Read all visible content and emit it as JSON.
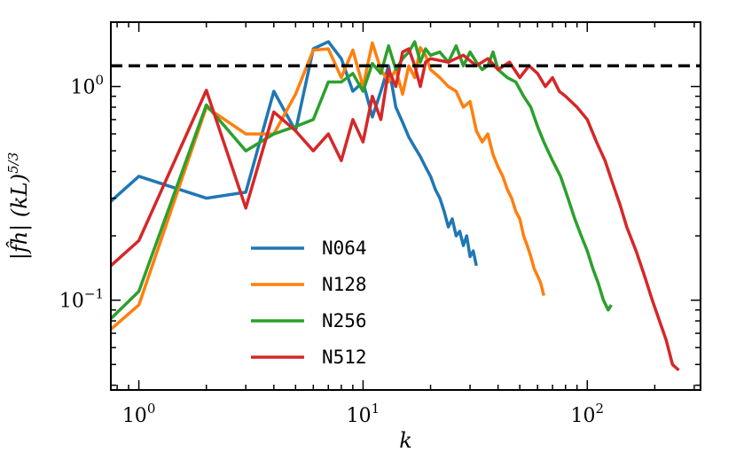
{
  "chart_data": {
    "type": "line",
    "xscale": "log",
    "yscale": "log",
    "xlabel": "k",
    "ylabel": "|f̂h| (kL)5/3",
    "xlim": [
      0.75,
      320
    ],
    "ylim": [
      0.038,
      2.0
    ],
    "x_ticks": [
      {
        "value": 1,
        "base": "10",
        "exp": "0"
      },
      {
        "value": 10,
        "base": "10",
        "exp": "1"
      },
      {
        "value": 100,
        "base": "10",
        "exp": "2"
      }
    ],
    "y_ticks": [
      {
        "value": 0.1,
        "base": "10",
        "exp": "−1"
      },
      {
        "value": 1,
        "base": "10",
        "exp": "0"
      }
    ],
    "reference_line": {
      "y": 1.25,
      "style": "dashed",
      "color": "#000000"
    },
    "legend": {
      "position": "lower-left"
    },
    "series": [
      {
        "name": "N064",
        "color": "#1f77b4",
        "x": [
          0.75,
          1,
          2,
          3,
          4,
          5,
          6,
          7,
          8,
          9,
          10,
          11,
          12,
          13,
          14,
          15,
          16,
          17,
          18,
          19,
          20,
          21,
          22,
          23,
          24,
          25,
          26,
          27,
          28,
          29,
          30,
          31,
          32
        ],
        "y": [
          0.29,
          0.38,
          0.3,
          0.32,
          0.95,
          0.62,
          1.5,
          1.62,
          1.35,
          0.95,
          1.05,
          0.72,
          0.95,
          1.25,
          0.8,
          0.68,
          0.58,
          0.52,
          0.47,
          0.42,
          0.38,
          0.33,
          0.3,
          0.26,
          0.22,
          0.24,
          0.2,
          0.21,
          0.18,
          0.2,
          0.16,
          0.17,
          0.145
        ]
      },
      {
        "name": "N128",
        "color": "#ff7f0e",
        "x": [
          0.75,
          1,
          2,
          3,
          4,
          5,
          6,
          7,
          8,
          9,
          10,
          11,
          12,
          13,
          14,
          15,
          16,
          17,
          18,
          19,
          20,
          22,
          24,
          26,
          28,
          30,
          32,
          34,
          36,
          38,
          40,
          42,
          44,
          46,
          48,
          50,
          52,
          54,
          56,
          58,
          60,
          62,
          64
        ],
        "y": [
          0.073,
          0.095,
          0.8,
          0.6,
          0.6,
          0.92,
          1.48,
          1.5,
          1.1,
          1.48,
          1.0,
          1.6,
          1.2,
          1.05,
          1.2,
          0.92,
          1.25,
          1.1,
          1.52,
          1.4,
          1.2,
          1.1,
          1.0,
          0.95,
          0.8,
          0.85,
          0.62,
          0.55,
          0.6,
          0.48,
          0.42,
          0.38,
          0.33,
          0.3,
          0.26,
          0.24,
          0.2,
          0.18,
          0.16,
          0.14,
          0.13,
          0.12,
          0.105
        ]
      },
      {
        "name": "N256",
        "color": "#2ca02c",
        "x": [
          0.75,
          1,
          2,
          3,
          4,
          5,
          6,
          7,
          8,
          9,
          10,
          11,
          12,
          13,
          14,
          15,
          16,
          17,
          18,
          19,
          20,
          22,
          24,
          26,
          28,
          30,
          32,
          34,
          36,
          38,
          40,
          44,
          48,
          52,
          56,
          60,
          64,
          70,
          76,
          82,
          88,
          94,
          100,
          106,
          112,
          118,
          124,
          128
        ],
        "y": [
          0.082,
          0.11,
          0.82,
          0.5,
          0.6,
          0.65,
          0.7,
          1.05,
          1.05,
          1.15,
          0.95,
          1.28,
          1.15,
          1.55,
          1.2,
          1.35,
          1.45,
          1.62,
          1.3,
          1.5,
          1.4,
          1.45,
          1.3,
          1.55,
          1.25,
          1.45,
          1.3,
          1.2,
          1.25,
          1.45,
          1.2,
          1.1,
          1.05,
          0.9,
          0.8,
          0.65,
          0.55,
          0.45,
          0.38,
          0.3,
          0.24,
          0.2,
          0.17,
          0.14,
          0.12,
          0.1,
          0.09,
          0.095
        ]
      },
      {
        "name": "N512",
        "color": "#d62728",
        "x": [
          0.75,
          1,
          2,
          3,
          4,
          5,
          6,
          7,
          8,
          9,
          10,
          11,
          12,
          13,
          14,
          15,
          16,
          17,
          18,
          19,
          20,
          24,
          28,
          32,
          36,
          40,
          45,
          50,
          55,
          60,
          65,
          70,
          75,
          80,
          90,
          100,
          110,
          120,
          130,
          140,
          150,
          165,
          180,
          195,
          210,
          225,
          240,
          256
        ],
        "y": [
          0.145,
          0.19,
          0.96,
          0.27,
          0.76,
          0.62,
          0.5,
          0.6,
          0.45,
          0.7,
          0.55,
          0.9,
          0.7,
          1.2,
          1.0,
          1.45,
          1.5,
          1.25,
          1.0,
          1.3,
          1.35,
          1.3,
          1.4,
          1.25,
          1.35,
          1.2,
          1.3,
          1.1,
          1.25,
          1.15,
          1.0,
          1.1,
          0.95,
          0.9,
          0.8,
          0.7,
          0.55,
          0.45,
          0.35,
          0.28,
          0.22,
          0.17,
          0.13,
          0.1,
          0.08,
          0.065,
          0.05,
          0.047
        ]
      }
    ]
  }
}
